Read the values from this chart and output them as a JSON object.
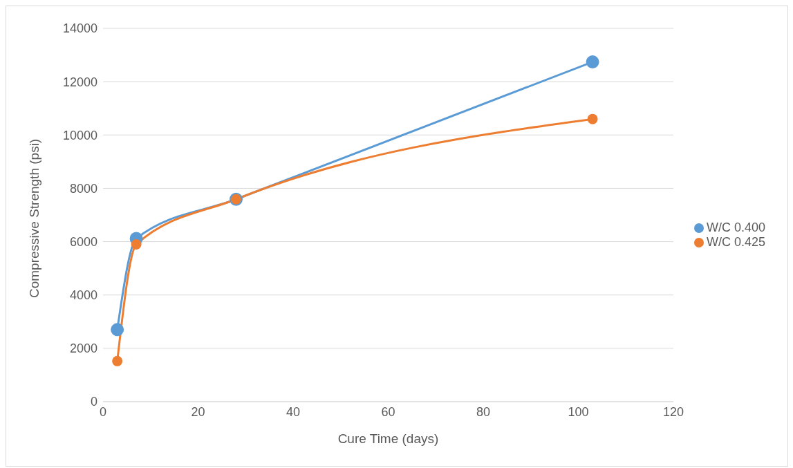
{
  "chart_data": {
    "type": "line",
    "xlabel": "Cure Time (days)",
    "ylabel": "Compressive Strength (psi)",
    "xlim": [
      0,
      120
    ],
    "xticks": [
      0,
      20,
      40,
      60,
      80,
      100,
      120
    ],
    "ylim": [
      0,
      14000
    ],
    "yticks": [
      0,
      2000,
      4000,
      6000,
      8000,
      10000,
      12000,
      14000
    ],
    "grid": "y",
    "legend": "right",
    "marker": "circle",
    "line_style": "solid",
    "series": [
      {
        "name": "W/C 0.400",
        "color": "#5b9bd5",
        "x": [
          3,
          7,
          28,
          103
        ],
        "values": [
          2700,
          6120,
          7590,
          12740
        ]
      },
      {
        "name": "W/C 0.425",
        "color": "#ed7d31",
        "x": [
          3,
          7,
          28,
          103
        ],
        "values": [
          1520,
          5900,
          7590,
          10600
        ]
      }
    ]
  }
}
